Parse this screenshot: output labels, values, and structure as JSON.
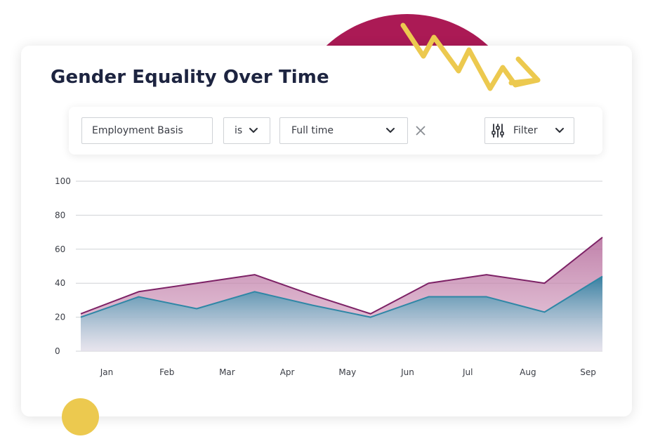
{
  "title": "Gender Equality Over Time",
  "filter_bar": {
    "field": "Employment Basis",
    "operator": "is",
    "value": "Full time",
    "filter_label": "Filter",
    "icons": {
      "operator_chevron": "chevron-down-icon",
      "value_chevron": "chevron-down-icon",
      "clear": "close-icon",
      "filter": "sliders-icon",
      "filter_chevron": "chevron-down-icon"
    }
  },
  "colors": {
    "title": "#1d2440",
    "series_upper": "#7d2266",
    "series_lower": "#2f87a6",
    "arc": "#ab1a55",
    "accent_yellow": "#ecc94f",
    "grid": "#cfd2d6"
  },
  "chart_data": {
    "type": "area",
    "categories": [
      "Jan",
      "Feb",
      "Mar",
      "Apr",
      "May",
      "Jun",
      "Jul",
      "Aug",
      "Sep"
    ],
    "ylim": [
      0,
      100
    ],
    "yticks": [
      0,
      20,
      40,
      60,
      80,
      100
    ],
    "grid": true,
    "x_offset_start": 0.5,
    "upper_series": [
      22,
      35,
      40,
      45,
      33,
      22,
      40,
      45,
      40,
      67
    ],
    "lower_series": [
      20,
      32,
      25,
      35,
      27,
      20,
      32,
      32,
      23,
      44
    ],
    "xlabel": "",
    "ylabel": ""
  }
}
